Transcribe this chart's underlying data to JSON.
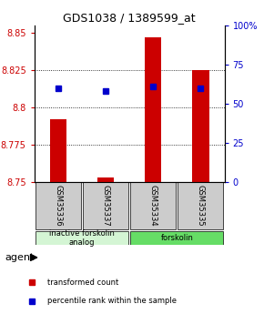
{
  "title": "GDS1038 / 1389599_at",
  "samples": [
    "GSM35336",
    "GSM35337",
    "GSM35334",
    "GSM35335"
  ],
  "bar_values": [
    8.792,
    8.753,
    8.847,
    8.825
  ],
  "bar_base": 8.75,
  "percentile_values": [
    60,
    58,
    61,
    60
  ],
  "ylim": [
    8.75,
    8.855
  ],
  "yticks_left": [
    8.75,
    8.775,
    8.8,
    8.825,
    8.85
  ],
  "yticks_right": [
    0,
    25,
    50,
    75,
    100
  ],
  "bar_color": "#cc0000",
  "dot_color": "#0000cc",
  "bar_width": 0.35,
  "agent_label": "agent",
  "group_labels": [
    "inactive forskolin\nanalog",
    "forskolin"
  ],
  "group_ranges": [
    [
      0,
      2
    ],
    [
      2,
      4
    ]
  ],
  "group_colors_light": [
    "#d4f5d4",
    "#66dd66"
  ],
  "group_colors_dark": [
    "#aaddaa",
    "#44cc44"
  ],
  "legend_bar_label": "transformed count",
  "legend_dot_label": "percentile rank within the sample",
  "title_fontsize": 9,
  "tick_fontsize": 7,
  "sample_fontsize": 6,
  "group_fontsize": 6,
  "legend_fontsize": 6,
  "agent_fontsize": 8
}
